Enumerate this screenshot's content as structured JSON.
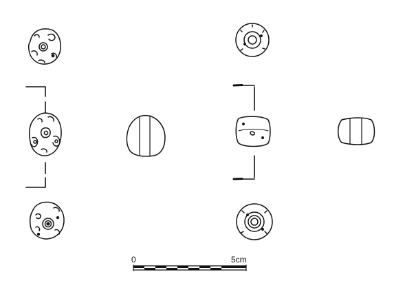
{
  "scale_bar": {
    "start_label": "0",
    "end_label": "5cm"
  },
  "colors": {
    "ink": "#111111",
    "paper": "#ffffff"
  }
}
